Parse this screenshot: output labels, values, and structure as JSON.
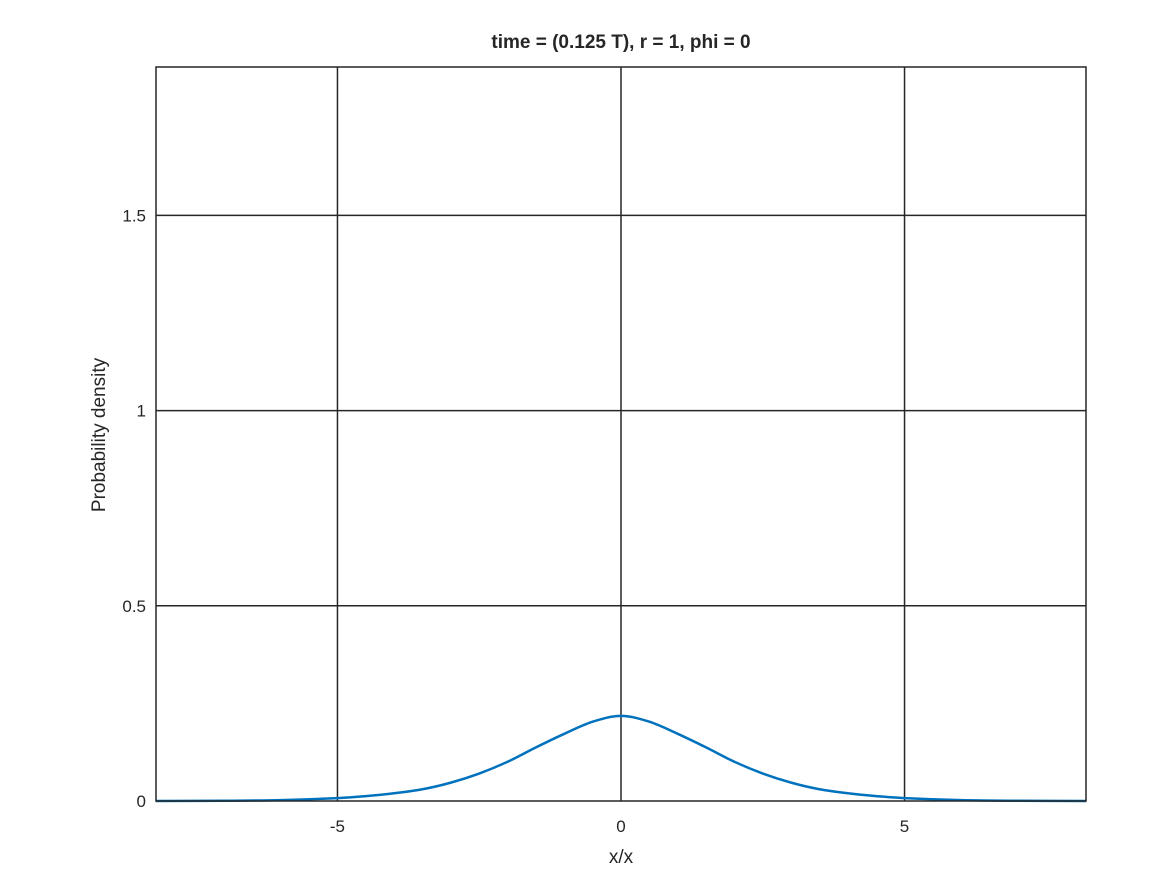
{
  "chart_data": {
    "type": "line",
    "title": "time = (0.125 T), r = 1, phi = 0",
    "xlabel": "x/x",
    "ylabel": "Probability density",
    "xlim": [
      -8.2,
      8.2
    ],
    "ylim": [
      0,
      1.88
    ],
    "xticks": [
      -5,
      0,
      5
    ],
    "xtick_labels": [
      "-5",
      "0",
      "5"
    ],
    "yticks": [
      0,
      0.5,
      1,
      1.5
    ],
    "ytick_labels": [
      "0",
      "0.5",
      "1",
      "1.5"
    ],
    "grid": true,
    "series": [
      {
        "color": "#0072bd",
        "x": [
          -8.2,
          -7,
          -6,
          -5,
          -4.5,
          -4,
          -3.5,
          -3,
          -2.5,
          -2,
          -1.5,
          -1,
          -0.5,
          0,
          0.5,
          1,
          1.5,
          2,
          2.5,
          3,
          3.5,
          4,
          4.5,
          5,
          6,
          7,
          8.2
        ],
        "y": [
          0.0,
          0.0006,
          0.0023,
          0.0075,
          0.0125,
          0.0198,
          0.0301,
          0.0471,
          0.0703,
          0.1004,
          0.1373,
          0.1721,
          0.2031,
          0.218,
          0.2031,
          0.1721,
          0.1373,
          0.1004,
          0.0703,
          0.0471,
          0.0301,
          0.0198,
          0.0125,
          0.0075,
          0.0023,
          0.0006,
          0.0
        ]
      }
    ]
  }
}
